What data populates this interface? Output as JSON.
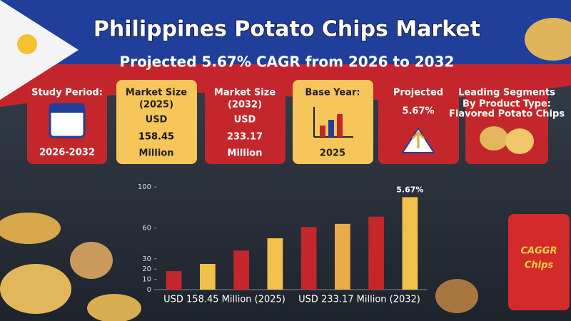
{
  "header": {
    "title": "Philippines Potato Chips Market",
    "subtitle": "Projected 5.67% CAGR from 2026 to 2032"
  },
  "cards": [
    {
      "lines": [
        "Study Period:",
        "2026-2032"
      ]
    },
    {
      "lines": [
        "Market Size",
        "(2025)",
        "USD",
        "158.45",
        "Million"
      ]
    },
    {
      "lines": [
        "Market Size",
        "(2032)",
        "USD",
        "233.17",
        "Million"
      ]
    },
    {
      "lines": [
        "Base Year:",
        "2025"
      ]
    },
    {
      "lines": [
        "Projected",
        "5.67%"
      ]
    },
    {
      "lines": [
        "Leading Segments",
        "By Product Type:",
        "Flavored Potato Chips"
      ]
    }
  ],
  "bag_text": [
    "CAGGR",
    "Chips"
  ],
  "chart_data": {
    "type": "bar",
    "categories": [
      null,
      null,
      null,
      null,
      null,
      null,
      null,
      null
    ],
    "group_labels": [
      "USD 158.45 Million  (2025)",
      "USD 233.17 Million  (2032)"
    ],
    "values": [
      18,
      25,
      38,
      50,
      61,
      64,
      71,
      90
    ],
    "colors": [
      "#c3272b",
      "#f2c04c",
      "#c3272b",
      "#f2c04c",
      "#c3272b",
      "#ecaa48",
      "#c3272b",
      "#f2c04c"
    ],
    "annotation": "5.67%",
    "ylim": [
      0,
      100
    ],
    "yticks": [
      0,
      10,
      20,
      30,
      60,
      100
    ]
  }
}
